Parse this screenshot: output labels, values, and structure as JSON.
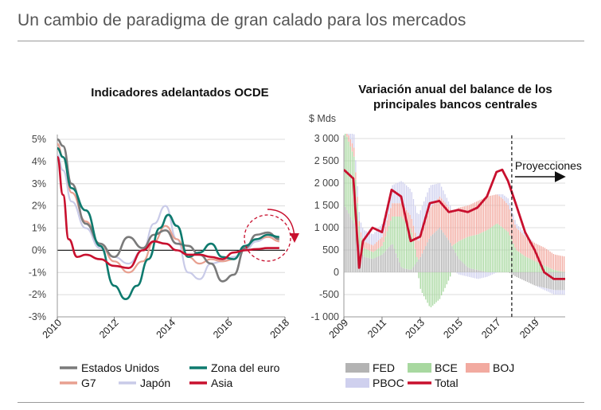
{
  "header": {
    "title": "Un cambio de paradigma de gran calado para los mercados"
  },
  "colors": {
    "estados_unidos": "#7a7a7a",
    "zona_euro": "#0e7a6e",
    "g7": "#e8a090",
    "japon": "#c9cbe8",
    "asia": "#c8102e",
    "fed": "#b3b3b3",
    "bce": "#a8d8a0",
    "boj": "#f2aaa0",
    "pboc": "#cfd0ee",
    "total": "#c8102e"
  },
  "chart_data": [
    {
      "id": "oecd",
      "type": "line",
      "title": "Indicadores adelantados OCDE",
      "y_ticks": [
        "5%",
        "4%",
        "3%",
        "2%",
        "1%",
        "0%",
        "-1%",
        "-2%",
        "-3%"
      ],
      "x_ticks": [
        "2010",
        "2012",
        "2014",
        "2016",
        "2018"
      ],
      "ylim": [
        -3,
        5
      ],
      "xlim": [
        2010,
        2018
      ],
      "legend": [
        {
          "key": "estados_unidos",
          "label": "Estados Unidos"
        },
        {
          "key": "zona_euro",
          "label": "Zona del euro"
        },
        {
          "key": "g7",
          "label": "G7"
        },
        {
          "key": "japon",
          "label": "Japón"
        },
        {
          "key": "asia",
          "label": "Asia"
        }
      ],
      "series": [
        {
          "key": "japon",
          "name": "Japón",
          "x": [
            2010,
            2010.2,
            2010.5,
            2011,
            2011.5,
            2012,
            2012.5,
            2013,
            2013.4,
            2013.8,
            2014.2,
            2014.6,
            2015,
            2015.4,
            2015.8,
            2016.2,
            2016.6,
            2017,
            2017.4,
            2017.8
          ],
          "values": [
            4.3,
            3.6,
            2.2,
            1.0,
            0.1,
            -0.3,
            -0.6,
            0.0,
            1.2,
            2.0,
            0.5,
            -1.0,
            -1.3,
            -0.6,
            -0.5,
            -0.3,
            0.0,
            0.4,
            0.6,
            0.6
          ]
        },
        {
          "key": "g7",
          "name": "G7",
          "x": [
            2010,
            2010.2,
            2010.5,
            2011,
            2011.5,
            2012,
            2012.5,
            2013,
            2013.4,
            2013.8,
            2014.2,
            2014.6,
            2015,
            2015.4,
            2015.8,
            2016.2,
            2016.6,
            2017,
            2017.4,
            2017.8
          ],
          "values": [
            4.8,
            4.2,
            2.6,
            1.3,
            0.3,
            -0.5,
            -1.0,
            -0.5,
            0.4,
            1.1,
            0.5,
            -0.3,
            -0.6,
            -0.4,
            -0.5,
            -0.4,
            0.2,
            0.5,
            0.6,
            0.4
          ]
        },
        {
          "key": "estados_unidos",
          "name": "Estados Unidos",
          "x": [
            2010,
            2010.2,
            2010.5,
            2011,
            2011.5,
            2012,
            2012.5,
            2013,
            2013.4,
            2013.8,
            2014.2,
            2014.6,
            2015,
            2015.4,
            2015.8,
            2016.2,
            2016.6,
            2017,
            2017.4,
            2017.8
          ],
          "values": [
            5.0,
            4.7,
            3.0,
            1.2,
            0.3,
            -0.3,
            0.6,
            0.1,
            0.7,
            0.9,
            0.3,
            0.2,
            -0.2,
            -0.6,
            -1.4,
            -1.1,
            0.1,
            0.7,
            0.8,
            0.5
          ]
        },
        {
          "key": "zona_euro",
          "name": "Zona del euro",
          "x": [
            2010,
            2010.2,
            2010.5,
            2011,
            2011.5,
            2012,
            2012.4,
            2012.8,
            2013.2,
            2013.6,
            2013.9,
            2014.2,
            2014.6,
            2015,
            2015.4,
            2015.8,
            2016.2,
            2016.6,
            2017,
            2017.4,
            2017.8
          ],
          "values": [
            4.6,
            4.2,
            2.8,
            1.8,
            0.2,
            -1.6,
            -2.2,
            -1.6,
            -0.4,
            1.0,
            1.6,
            1.1,
            -0.3,
            -0.1,
            0.3,
            -0.3,
            -0.4,
            0.2,
            0.5,
            0.7,
            0.6
          ]
        },
        {
          "key": "asia",
          "name": "Asia",
          "x": [
            2010,
            2010.2,
            2010.4,
            2010.7,
            2011,
            2011.5,
            2012,
            2012.5,
            2013,
            2013.4,
            2013.8,
            2014.2,
            2014.6,
            2015,
            2015.4,
            2015.8,
            2016.2,
            2016.6,
            2017,
            2017.4,
            2017.8
          ],
          "values": [
            4.2,
            2.5,
            0.5,
            -0.3,
            -0.2,
            -0.4,
            -0.7,
            -0.8,
            0.0,
            0.4,
            0.3,
            0.0,
            -0.2,
            -0.2,
            -0.3,
            -0.4,
            -0.1,
            0.0,
            0.05,
            0.1,
            0.1
          ]
        }
      ]
    },
    {
      "id": "balances",
      "type": "area",
      "title_lines": [
        "Variación anual del balance de los",
        "principales bancos centrales"
      ],
      "y_unit": "$ Mds",
      "y_ticks": [
        "3 000",
        "2 500",
        "2 000",
        "1 500",
        "1 000",
        "500",
        "0",
        "-500",
        "-1 000"
      ],
      "x_ticks": [
        "2009",
        "2011",
        "2013",
        "2015",
        "2017",
        "2019"
      ],
      "ylim": [
        -1000,
        3000
      ],
      "xlim": [
        2009,
        2020.6
      ],
      "projection_start": 2017.8,
      "annotation": "Proyecciones",
      "legend": [
        {
          "key": "fed",
          "label": "FED"
        },
        {
          "key": "bce",
          "label": "BCE"
        },
        {
          "key": "boj",
          "label": "BOJ"
        },
        {
          "key": "pboc",
          "label": "PBOC"
        },
        {
          "key": "total",
          "label": "Total"
        }
      ],
      "x": [
        2009,
        2009.5,
        2009.8,
        2010,
        2010.5,
        2011,
        2011.5,
        2012,
        2012.5,
        2013,
        2013.5,
        2014,
        2014.5,
        2015,
        2015.5,
        2016,
        2016.5,
        2017,
        2017.3,
        2017.6,
        2018,
        2018.5,
        2019,
        2019.5,
        2020,
        2020.6
      ],
      "series": [
        {
          "key": "fed",
          "name": "FED",
          "values": [
            1500,
            1100,
            600,
            350,
            300,
            400,
            650,
            100,
            50,
            350,
            800,
            1000,
            700,
            300,
            100,
            50,
            0,
            0,
            0,
            0,
            -100,
            -200,
            -300,
            -350,
            -400,
            -400
          ]
        },
        {
          "key": "bce",
          "name": "BCE",
          "values": [
            1700,
            1500,
            300,
            200,
            150,
            200,
            600,
            1150,
            900,
            -400,
            -800,
            -600,
            -150,
            400,
            700,
            800,
            950,
            1100,
            1000,
            900,
            500,
            350,
            250,
            150,
            50,
            0
          ]
        },
        {
          "key": "boj",
          "name": "BOJ",
          "values": [
            100,
            200,
            100,
            150,
            150,
            200,
            300,
            300,
            300,
            450,
            650,
            700,
            750,
            750,
            700,
            750,
            750,
            650,
            650,
            600,
            500,
            450,
            400,
            400,
            350,
            350
          ]
        },
        {
          "key": "pboc",
          "name": "PBOC",
          "values": [
            400,
            300,
            200,
            250,
            250,
            300,
            400,
            500,
            600,
            600,
            500,
            300,
            100,
            -50,
            -100,
            -150,
            -100,
            0,
            100,
            150,
            100,
            50,
            0,
            -50,
            -100,
            -100
          ]
        },
        {
          "key": "total",
          "name": "Total",
          "values": [
            2300,
            2100,
            100,
            700,
            1000,
            900,
            1850,
            1700,
            700,
            800,
            1550,
            1600,
            1350,
            1400,
            1350,
            1450,
            1700,
            2250,
            2300,
            2050,
            1550,
            900,
            500,
            0,
            -150,
            -150
          ]
        }
      ]
    }
  ]
}
